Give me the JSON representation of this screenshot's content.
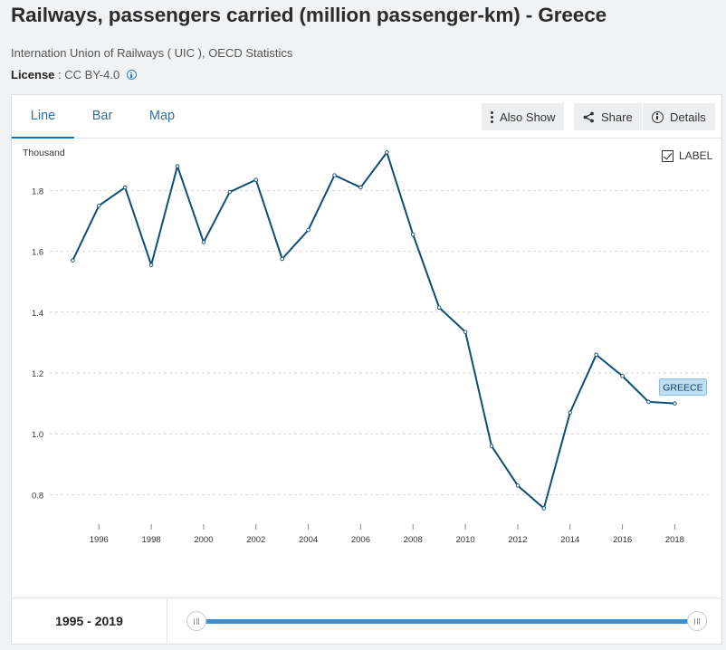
{
  "header": {
    "title": "Railways, passengers carried (million passenger-km) - Greece",
    "source": "Internation Union of Railways ( UIC ), OECD Statistics",
    "license_label": "License",
    "license_sep": " : ",
    "license_value": "CC BY-4.0"
  },
  "tabs": [
    {
      "label": "Line",
      "active": true
    },
    {
      "label": "Bar",
      "active": false
    },
    {
      "label": "Map",
      "active": false
    }
  ],
  "toolbar": {
    "also_show": "Also Show",
    "share": "Share",
    "details": "Details"
  },
  "label_toggle": {
    "text": "LABEL",
    "checked": true
  },
  "chart_data": {
    "type": "line",
    "unit_label": "Thousand",
    "x": [
      1995,
      1996,
      1997,
      1998,
      1999,
      2000,
      2001,
      2002,
      2003,
      2004,
      2005,
      2006,
      2007,
      2008,
      2009,
      2010,
      2011,
      2012,
      2013,
      2014,
      2015,
      2016,
      2017,
      2018
    ],
    "series": [
      {
        "name": "GREECE",
        "color": "#0d4e78",
        "values": [
          1.57,
          1.75,
          1.81,
          1.555,
          1.88,
          1.63,
          1.795,
          1.835,
          1.575,
          1.67,
          1.85,
          1.81,
          1.925,
          1.655,
          1.415,
          1.335,
          0.96,
          0.83,
          0.755,
          1.07,
          1.26,
          1.19,
          1.105,
          1.1
        ]
      }
    ],
    "y_ticks": [
      0.8,
      1.0,
      1.2,
      1.4,
      1.6,
      1.8
    ],
    "y_tick_labels": [
      "0.8",
      "1.0",
      "1.2",
      "1.4",
      "1.6",
      "1.8"
    ],
    "x_ticks": [
      1996,
      1998,
      2000,
      2002,
      2004,
      2006,
      2008,
      2010,
      2012,
      2014,
      2016,
      2018
    ],
    "x_tick_labels": [
      "1996",
      "1998",
      "2000",
      "2002",
      "2004",
      "2006",
      "2008",
      "2010",
      "2012",
      "2014",
      "2016",
      "2018"
    ],
    "ylim": [
      0.7,
      1.95
    ],
    "xlim": [
      1994.4,
      2019.3
    ],
    "grid": true,
    "legend": "none",
    "end_label": "GREECE"
  },
  "footer": {
    "range_start": "1995",
    "range_sep": " - ",
    "range_end": "2019"
  },
  "colors": {
    "accent": "#1a73b8",
    "line": "#0d4e78",
    "slider": "#3f8fd0",
    "label_bg": "#bfe0f4"
  }
}
